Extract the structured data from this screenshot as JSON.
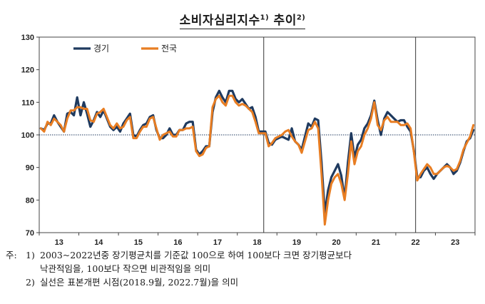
{
  "title": {
    "main": "소비자심리지수",
    "sup1": "1)",
    "mid": " 추이",
    "sup2": "2)"
  },
  "colors": {
    "economy": "#1f3a5f",
    "national": "#e87d22",
    "reference": "#1f3a5f",
    "divider": "#333333"
  },
  "notes": {
    "prefix": "주:",
    "n1_label": "1)",
    "n1_text": "2003~2022년중 장기평균치를 기준값 100으로 하여 100보다 크면 장기평균보다",
    "n1_cont": "낙관적임을, 100보다 작으면 비관적임을 의미",
    "n2_label": "2)",
    "n2_text": "실선은 표본개편 시점(2018.9월, 2022.7월)을 의미"
  },
  "chart_data": {
    "type": "line",
    "title": "소비자심리지수 추이",
    "xlabel": "",
    "ylabel": "",
    "ylim": [
      70,
      130
    ],
    "yticks": [
      70,
      80,
      90,
      100,
      110,
      120,
      130
    ],
    "x_start": "2013-01",
    "x_end": "2023-12",
    "x_tick_labels": [
      "13",
      "14",
      "15",
      "16",
      "17",
      "18",
      "19",
      "20",
      "21",
      "22",
      "23"
    ],
    "reference_line": 100,
    "vertical_lines": [
      "2018-09",
      "2022-07"
    ],
    "legend_position": "top-left",
    "grid": false,
    "series": [
      {
        "name": "경기",
        "values": [
          102,
          101.5,
          103.5,
          103.5,
          106,
          104,
          102.5,
          101,
          106.5,
          107,
          106,
          111.5,
          106,
          110,
          106.5,
          102.5,
          104.5,
          107,
          105.5,
          107.5,
          105,
          102.5,
          101.5,
          102.5,
          101,
          103.5,
          105,
          106.5,
          100,
          99.5,
          101.5,
          103,
          103.5,
          105.5,
          106,
          101.5,
          99,
          99,
          100,
          102,
          100,
          100,
          101.5,
          101.5,
          103.5,
          104,
          104,
          95.5,
          94,
          95,
          96.5,
          96.5,
          107,
          111.5,
          113.5,
          111.5,
          110,
          113.5,
          113.5,
          111,
          110,
          111,
          109.5,
          108,
          108.5,
          105.5,
          101,
          101,
          101,
          97.5,
          97,
          98.5,
          99,
          99.5,
          99,
          98.5,
          102,
          98,
          97,
          95.5,
          99.5,
          103.5,
          102.5,
          105,
          104.5,
          91.5,
          76,
          83,
          87,
          89,
          91,
          87.5,
          80.5,
          91.5,
          100.5,
          93,
          97,
          98.5,
          102,
          103.5,
          106,
          110.5,
          104.5,
          100,
          105,
          107,
          106,
          105,
          104,
          104.5,
          104.5,
          102.5,
          101,
          95,
          87,
          87,
          89,
          90,
          88,
          86.5,
          88,
          89,
          90,
          91,
          90,
          88,
          89,
          91.5,
          95,
          98,
          99,
          101.5
        ]
      },
      {
        "name": "전국",
        "values": [
          102,
          101,
          104,
          103,
          105,
          104,
          103,
          101,
          105,
          107.5,
          107.5,
          108.5,
          108.5,
          108,
          108,
          104.5,
          104,
          106.5,
          107,
          108,
          105.5,
          103,
          102,
          103.5,
          102,
          102.5,
          104.5,
          105.5,
          99,
          99,
          101,
          102.5,
          102.5,
          105,
          105.5,
          102,
          98.5,
          100,
          100.5,
          101,
          99.5,
          99.5,
          101.5,
          101.5,
          102,
          102,
          102.5,
          95,
          93.5,
          94,
          96,
          96.5,
          108.5,
          111,
          112,
          110,
          109,
          112,
          112,
          110,
          109,
          109.5,
          109,
          108,
          107,
          104,
          100.5,
          100.5,
          100.5,
          96.5,
          97.5,
          99,
          99.5,
          100,
          101,
          101.5,
          99.5,
          98,
          97,
          94.5,
          98,
          101.5,
          102,
          104,
          102,
          88,
          72.5,
          80,
          85,
          87,
          88,
          85,
          80,
          88,
          98,
          91,
          95,
          96.5,
          100,
          102,
          105,
          110,
          103,
          101.5,
          104.5,
          105.5,
          104,
          104,
          104,
          103,
          103,
          103.5,
          102,
          94.5,
          86,
          88,
          89.5,
          91,
          90,
          88,
          88,
          89,
          90,
          90.5,
          90,
          89,
          89.5,
          92,
          95.5,
          97.5,
          99.5,
          103
        ]
      }
    ]
  }
}
